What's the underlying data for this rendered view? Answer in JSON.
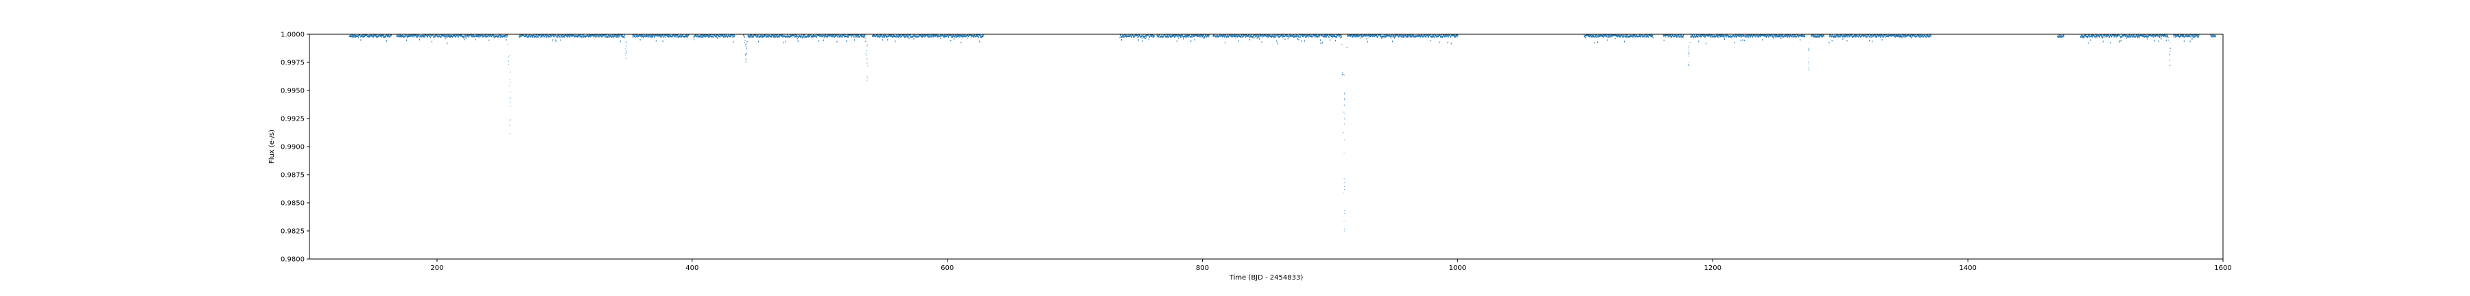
{
  "chart_data": {
    "type": "scatter",
    "title": "",
    "xlabel": "Time (BJD - 2454833)",
    "ylabel": "Flux (e-/s)",
    "xlim": [
      100,
      1600
    ],
    "ylim": [
      0.98,
      1.0
    ],
    "xticks": [
      "200",
      "400",
      "600",
      "800",
      "1000",
      "1200",
      "1400",
      "1600"
    ],
    "yticks": [
      "1.0000",
      "0.9975",
      "0.9950",
      "0.9925",
      "0.9900",
      "0.9875",
      "0.9850",
      "0.9825",
      "0.9800"
    ],
    "grid": false,
    "legend": "none",
    "series": [
      {
        "marker_color": "#1f77b4",
        "segments": [
          [
            131,
            164
          ],
          [
            168,
            256
          ],
          [
            264,
            347
          ],
          [
            353,
            397
          ],
          [
            401,
            433
          ],
          [
            440,
            536
          ],
          [
            541,
            628
          ],
          [
            735,
            762
          ],
          [
            764,
            805
          ],
          [
            808,
            910
          ],
          [
            913,
            1000
          ],
          [
            1099,
            1153
          ],
          [
            1161,
            1177
          ],
          [
            1182,
            1272
          ],
          [
            1277,
            1287
          ],
          [
            1291,
            1371
          ],
          [
            1470,
            1475
          ],
          [
            1488,
            1557
          ],
          [
            1561,
            1581
          ],
          [
            1590,
            1594
          ]
        ],
        "dips": [
          {
            "x": 257,
            "depth": 0.0092,
            "width": 2.0
          },
          {
            "x": 348,
            "depth": 0.0022,
            "width": 1.2
          },
          {
            "x": 442,
            "depth": 0.0026,
            "width": 1.3
          },
          {
            "x": 537,
            "depth": 0.0043,
            "width": 1.6
          },
          {
            "x": 911,
            "depth": 0.0175,
            "width": 2.2
          },
          {
            "x": 1181,
            "depth": 0.0028,
            "width": 1.3
          },
          {
            "x": 1275,
            "depth": 0.0033,
            "width": 1.4
          },
          {
            "x": 1558,
            "depth": 0.0028,
            "width": 1.3
          }
        ]
      }
    ]
  }
}
